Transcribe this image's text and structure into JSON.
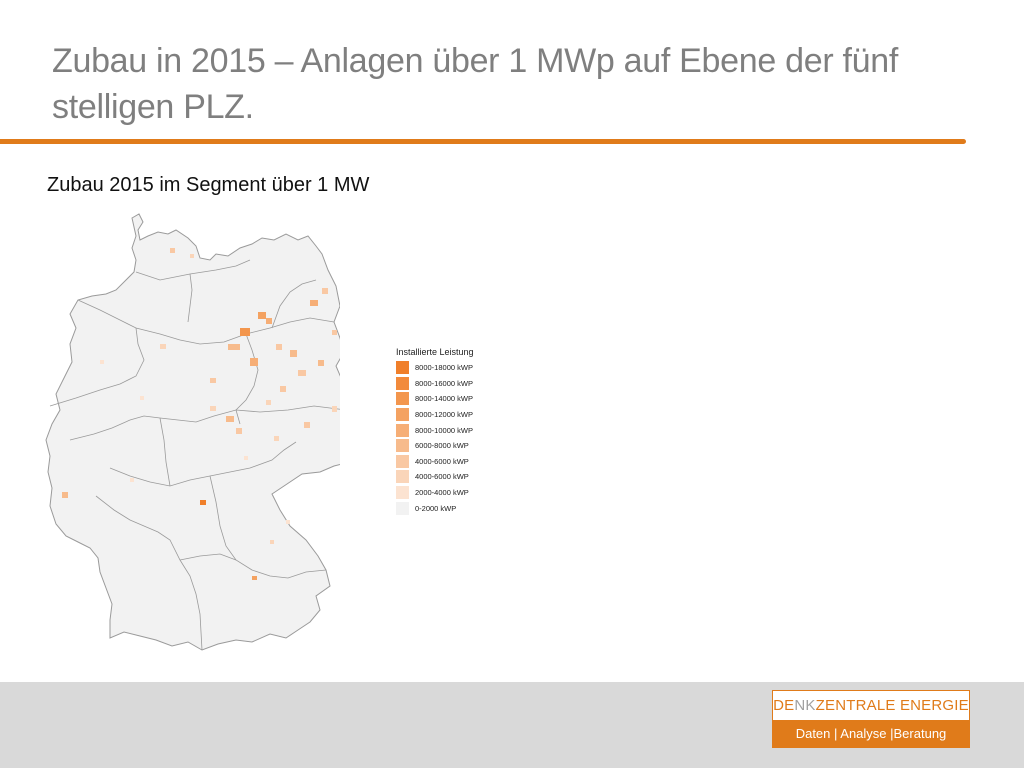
{
  "slide": {
    "title": "Zubau in 2015 – Anlagen über 1 MWp auf Ebene der fünf stelligen PLZ.",
    "subtitle": "Zubau 2015 im Segment über 1 MW"
  },
  "map": {
    "region": "Germany",
    "colors": {
      "base": "#f2f2f2",
      "border": "#9a9a9a"
    },
    "legend": {
      "title": "Installierte Leistung",
      "items": [
        {
          "label": "8000-18000 kWP",
          "color": "#f07f2a"
        },
        {
          "label": "8000-16000 kWP",
          "color": "#f28a3b"
        },
        {
          "label": "8000-14000 kWP",
          "color": "#f3964d"
        },
        {
          "label": "8000-12000 kWP",
          "color": "#f4a261"
        },
        {
          "label": "8000-10000 kWP",
          "color": "#f6ae76"
        },
        {
          "label": "6000-8000 kWP",
          "color": "#f7bb8c"
        },
        {
          "label": "4000-6000 kWP",
          "color": "#f9c8a3"
        },
        {
          "label": "4000-6000 kWP",
          "color": "#fad5b9"
        },
        {
          "label": "2000-4000 kWP",
          "color": "#fce3d1"
        },
        {
          "label": "0-2000 kWP",
          "color": "#f2f2f2"
        }
      ]
    }
  },
  "logo": {
    "part1": "DE",
    "part2": "NK",
    "part3": "ZENTRALE ENERGIE",
    "tagline": "Daten | Analyse |Beratung"
  }
}
